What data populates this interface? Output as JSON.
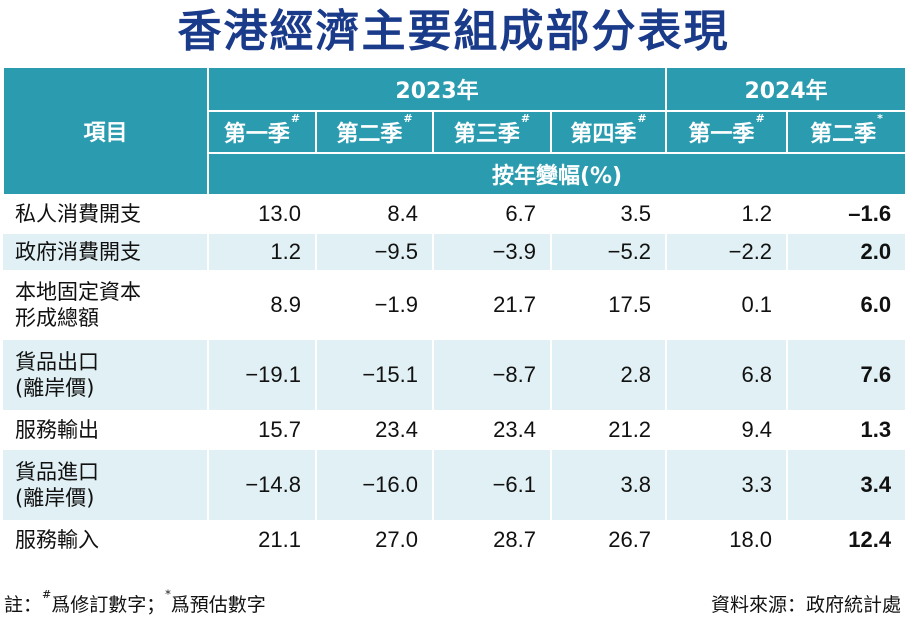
{
  "title": "香港經濟主要組成部分表現",
  "chart_data": {
    "type": "table",
    "header": {
      "item_label": "項目",
      "years": [
        {
          "label": "2023年",
          "span": 4
        },
        {
          "label": "2024年",
          "span": 2
        }
      ],
      "quarters": [
        {
          "label": "第一季",
          "mark": "#"
        },
        {
          "label": "第二季",
          "mark": "#"
        },
        {
          "label": "第三季",
          "mark": "#"
        },
        {
          "label": "第四季",
          "mark": "#"
        },
        {
          "label": "第一季",
          "mark": "#"
        },
        {
          "label": "第二季",
          "mark": "*"
        }
      ],
      "unit": "按年變幅(%)"
    },
    "rows": [
      {
        "label": [
          "私人消費開支"
        ],
        "values": [
          "13.0",
          "8.4",
          "6.7",
          "3.5",
          "1.2",
          "–1.6"
        ]
      },
      {
        "label": [
          "政府消費開支"
        ],
        "values": [
          "1.2",
          "−9.5",
          "−3.9",
          "−5.2",
          "−2.2",
          "2.0"
        ]
      },
      {
        "label": [
          "本地固定資本",
          "形成總額"
        ],
        "values": [
          "8.9",
          "−1.9",
          "21.7",
          "17.5",
          "0.1",
          "6.0"
        ]
      },
      {
        "label": [
          "貨品出口",
          "(離岸價)"
        ],
        "values": [
          "−19.1",
          "−15.1",
          "−8.7",
          "2.8",
          "6.8",
          "7.6"
        ]
      },
      {
        "label": [
          "服務輸出"
        ],
        "values": [
          "15.7",
          "23.4",
          "23.4",
          "21.2",
          "9.4",
          "1.3"
        ]
      },
      {
        "label": [
          "貨品進口",
          "(離岸價)"
        ],
        "values": [
          "−14.8",
          "−16.0",
          "−6.1",
          "3.8",
          "3.3",
          "3.4"
        ]
      },
      {
        "label": [
          "服務輸入"
        ],
        "values": [
          "21.1",
          "27.0",
          "28.7",
          "26.7",
          "18.0",
          "12.4"
        ]
      }
    ]
  },
  "footnote": {
    "prefix": "註：",
    "mark1": "#",
    "text1": "爲修訂數字；",
    "mark2": "*",
    "text2": "爲預估數字"
  },
  "source": "資料來源：政府統計處",
  "colors": {
    "header_bg": "#2b9cb0",
    "row_alt_bg": "#e1f0f4",
    "title": "#1a3a8a"
  }
}
